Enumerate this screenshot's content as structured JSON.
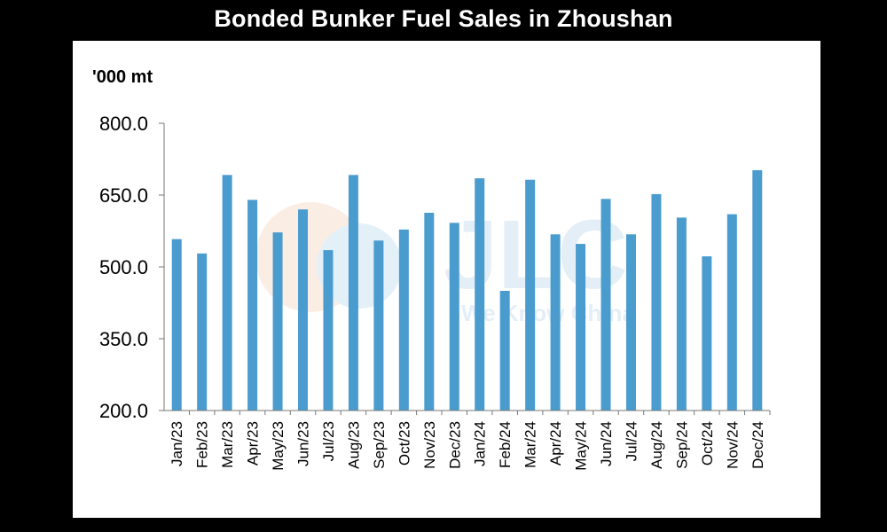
{
  "title": "Bonded Bunker Fuel Sales in Zhoushan",
  "watermark": {
    "logo_text": "JLC",
    "tagline": "We Know China"
  },
  "chart_data": {
    "type": "bar",
    "title": "Bonded Bunker Fuel Sales in Zhoushan",
    "ylabel": "'000 mt",
    "xlabel": "",
    "ylim": [
      200,
      800
    ],
    "yticks": [
      "800.0",
      "650.0",
      "500.0",
      "350.0",
      "200.0"
    ],
    "ytick_values": [
      800,
      650,
      500,
      350,
      200
    ],
    "categories": [
      "Jan/23",
      "Feb/23",
      "Mar/23",
      "Apr/23",
      "May/23",
      "Jun/23",
      "Jul/23",
      "Aug/23",
      "Sep/23",
      "Oct/23",
      "Nov/23",
      "Dec/23",
      "Jan/24",
      "Feb/24",
      "Mar/24",
      "Apr/24",
      "May/24",
      "Jun/24",
      "Jul/24",
      "Aug/24",
      "Sep/24",
      "Oct/24",
      "Nov/24",
      "Dec/24"
    ],
    "values": [
      558,
      528,
      692,
      640,
      572,
      620,
      535,
      692,
      555,
      578,
      613,
      592,
      685,
      450,
      682,
      568,
      548,
      642,
      568,
      652,
      603,
      522,
      610,
      702
    ],
    "bar_color": "#4a9ccf",
    "grid": false,
    "legend": "none"
  }
}
